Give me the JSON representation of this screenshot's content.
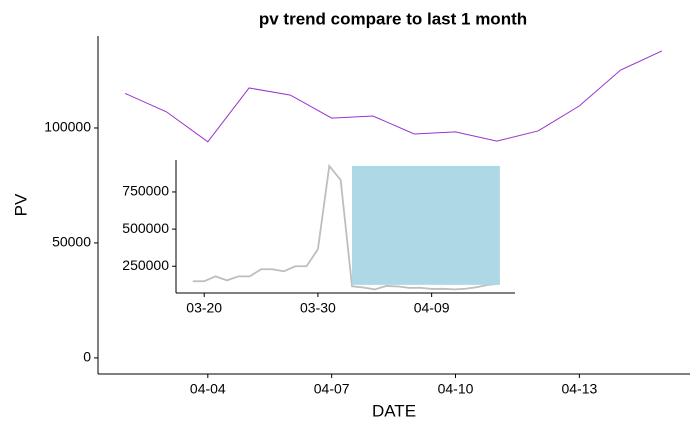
{
  "chart_data": [
    {
      "type": "line",
      "title": "pv trend compare to last 1 month",
      "xlabel": "DATE",
      "ylabel": "PV",
      "x": [
        "04-02",
        "04-03",
        "04-04",
        "04-05",
        "04-06",
        "04-07",
        "04-08",
        "04-09",
        "04-10",
        "04-11",
        "04-12",
        "04-13",
        "04-14",
        "04-15"
      ],
      "series": [
        {
          "color": "#9a32cd",
          "values": [
            115000,
            107000,
            94000,
            117400,
            114300,
            104300,
            105200,
            97400,
            98300,
            94300,
            98700,
            109600,
            125200,
            133500
          ]
        }
      ],
      "xticks": [
        "04-04",
        "04-07",
        "04-10",
        "04-13"
      ],
      "ylim": [
        -7000,
        140000
      ],
      "yticks": [
        0,
        50000,
        100000
      ],
      "grid": false
    },
    {
      "type": "line",
      "x": [
        "03-19",
        "03-20",
        "03-21",
        "03-22",
        "03-23",
        "03-24",
        "03-25",
        "03-26",
        "03-27",
        "03-28",
        "03-29",
        "03-30",
        "03-31",
        "04-01",
        "04-02",
        "04-03",
        "04-04",
        "04-05",
        "04-06",
        "04-07",
        "04-08",
        "04-09",
        "04-10",
        "04-11",
        "04-12",
        "04-13",
        "04-14",
        "04-15"
      ],
      "series": [
        {
          "color": "#bebebe",
          "values": [
            149000,
            149000,
            182000,
            155000,
            182000,
            182000,
            230000,
            230000,
            216000,
            250000,
            250000,
            365000,
            925000,
            830000,
            115000,
            107000,
            94000,
            117400,
            114300,
            104300,
            105200,
            97400,
            98300,
            94300,
            98700,
            109600,
            125200,
            133500
          ]
        }
      ],
      "xticks": [
        "03-20",
        "03-30",
        "04-09"
      ],
      "ylim": [
        70000,
        965000
      ],
      "yticks": [
        250000,
        500000,
        750000
      ],
      "grid": false,
      "highlight": {
        "color": "#add8e6",
        "xlim": [
          "04-02",
          "04-15"
        ],
        "ylim": [
          125000,
          925000
        ]
      }
    }
  ]
}
